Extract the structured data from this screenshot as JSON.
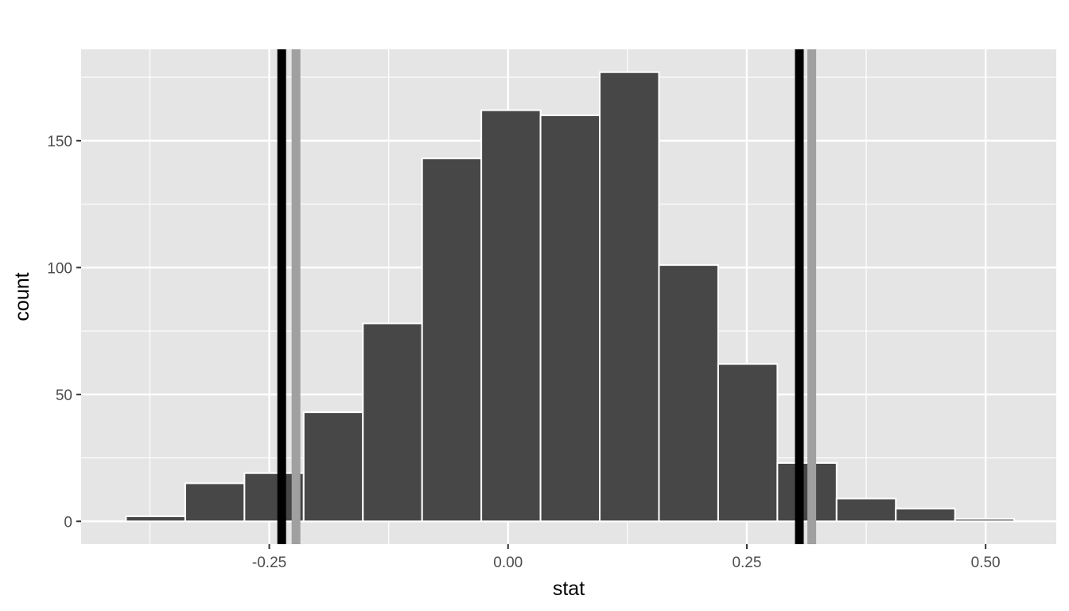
{
  "chart_data": {
    "type": "bar",
    "title": "",
    "xlabel": "stat",
    "ylabel": "count",
    "bins": [
      {
        "x0": -0.4,
        "x1": -0.338,
        "count": 2
      },
      {
        "x0": -0.338,
        "x1": -0.276,
        "count": 15
      },
      {
        "x0": -0.276,
        "x1": -0.214,
        "count": 19
      },
      {
        "x0": -0.214,
        "x1": -0.152,
        "count": 43
      },
      {
        "x0": -0.152,
        "x1": -0.09,
        "count": 78
      },
      {
        "x0": -0.09,
        "x1": -0.028,
        "count": 143
      },
      {
        "x0": -0.028,
        "x1": 0.034,
        "count": 162
      },
      {
        "x0": 0.034,
        "x1": 0.096,
        "count": 160
      },
      {
        "x0": 0.096,
        "x1": 0.158,
        "count": 177
      },
      {
        "x0": 0.158,
        "x1": 0.22,
        "count": 101
      },
      {
        "x0": 0.22,
        "x1": 0.282,
        "count": 62
      },
      {
        "x0": 0.282,
        "x1": 0.344,
        "count": 23
      },
      {
        "x0": 0.344,
        "x1": 0.406,
        "count": 9
      },
      {
        "x0": 0.406,
        "x1": 0.468,
        "count": 5
      },
      {
        "x0": 0.468,
        "x1": 0.53,
        "count": 1
      }
    ],
    "xlim": [
      -0.447,
      0.574
    ],
    "ylim": [
      -9,
      186
    ],
    "x_ticks": [
      {
        "value": -0.25,
        "label": "-0.25"
      },
      {
        "value": 0.0,
        "label": "0.00"
      },
      {
        "value": 0.25,
        "label": "0.25"
      },
      {
        "value": 0.5,
        "label": "0.50"
      }
    ],
    "x_minor_ticks": [
      -0.375,
      -0.125,
      0.125,
      0.375
    ],
    "y_ticks": [
      {
        "value": 0,
        "label": "0"
      },
      {
        "value": 50,
        "label": "50"
      },
      {
        "value": 100,
        "label": "100"
      },
      {
        "value": 150,
        "label": "150"
      }
    ],
    "y_minor_ticks": [
      25,
      75,
      125,
      175
    ],
    "vlines": [
      {
        "value": -0.237,
        "color": "#000000",
        "name": "black-left"
      },
      {
        "value": -0.222,
        "color": "#a0a0a0",
        "name": "grey-left"
      },
      {
        "value": 0.305,
        "color": "#000000",
        "name": "black-right"
      },
      {
        "value": 0.318,
        "color": "#a0a0a0",
        "name": "grey-right"
      }
    ],
    "grid": true,
    "colors": {
      "panel_background": "#e5e5e5",
      "grid": "#ffffff",
      "bar_fill": "#474747",
      "bar_outline": "#ffffff",
      "tick_color": "#333333"
    }
  }
}
